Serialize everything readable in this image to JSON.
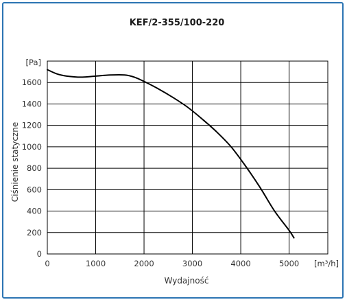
{
  "chart_data": {
    "type": "line",
    "title": "KEF/2-355/100-220",
    "xlabel": "Wydajność",
    "ylabel": "Ciśnienie statyczne",
    "x_unit": "[m³/h]",
    "y_unit": "[Pa]",
    "xlim": [
      0,
      5800
    ],
    "ylim": [
      0,
      1800
    ],
    "x_ticks": [
      0,
      1000,
      2000,
      3000,
      4000,
      5000
    ],
    "y_ticks": [
      0,
      200,
      400,
      600,
      800,
      1000,
      1200,
      1400,
      1600
    ],
    "grid": true,
    "series": [
      {
        "x": [
          0,
          200,
          400,
          700,
          1000,
          1300,
          1600,
          1800,
          2000,
          2300,
          2600,
          2900,
          3200,
          3500,
          3800,
          4100,
          4400,
          4700,
          5000,
          5100
        ],
        "y": [
          1720,
          1680,
          1660,
          1650,
          1660,
          1670,
          1670,
          1650,
          1610,
          1540,
          1460,
          1370,
          1260,
          1140,
          1000,
          820,
          620,
          400,
          220,
          150
        ],
        "color": "#000000"
      }
    ]
  }
}
